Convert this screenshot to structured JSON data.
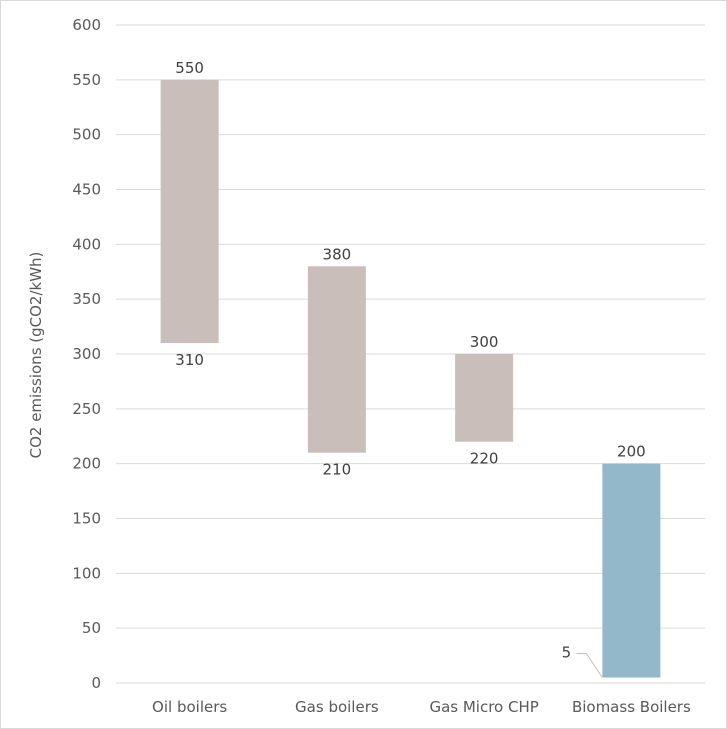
{
  "chart_data": {
    "type": "bar",
    "subtype": "floating-range",
    "title": "",
    "xlabel": "",
    "ylabel": "CO2 emissions (gCO2/kWh)",
    "ylim": [
      0,
      600
    ],
    "yticks": [
      0,
      50,
      100,
      150,
      200,
      250,
      300,
      350,
      400,
      450,
      500,
      550,
      600
    ],
    "grid": true,
    "legend": "none",
    "categories": [
      "Oil boilers",
      "Gas boilers",
      "Gas Micro CHP",
      "Biomass Boilers"
    ],
    "series": [
      {
        "low": [
          310,
          210,
          220,
          5
        ],
        "high": [
          550,
          380,
          300,
          200
        ],
        "colors": [
          "#c9beb9",
          "#c9beb9",
          "#c9beb9",
          "#92b8c9"
        ]
      }
    ]
  }
}
